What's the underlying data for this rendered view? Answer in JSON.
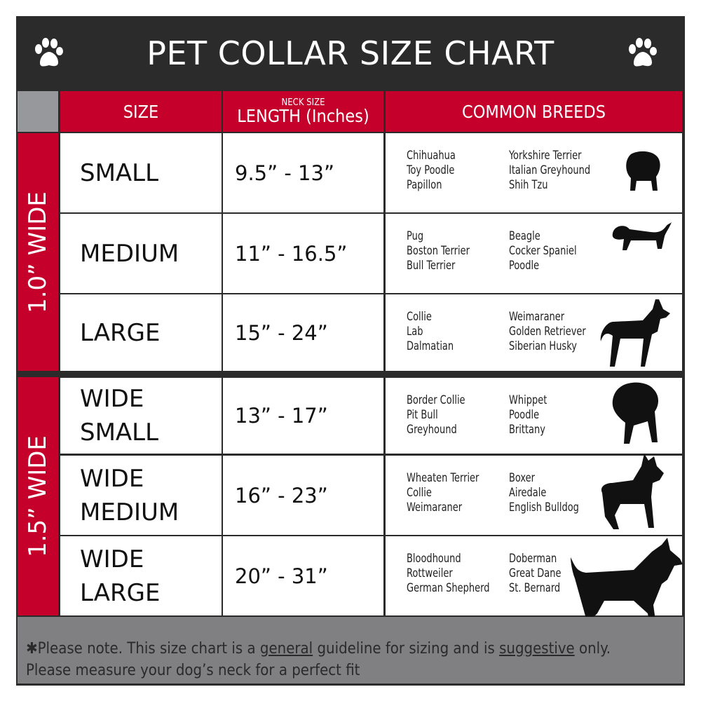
{
  "title": "PET COLLAR SIZE CHART",
  "icons": {
    "left": "paw-icon",
    "right": "paw-icon"
  },
  "colors": {
    "header_red": "#c4002b",
    "title_bg": "#2b2b2b",
    "footer_gray": "#808083"
  },
  "headers": {
    "size": "SIZE",
    "length_small": "NECK SIZE",
    "length": "LENGTH (Inches)",
    "breeds": "COMMON BREEDS"
  },
  "groups": [
    {
      "label": "1.0” WIDE"
    },
    {
      "label": "1.5” WIDE"
    }
  ],
  "rows": [
    {
      "size": "SMALL",
      "length": "9.5” - 13”",
      "breeds_a": [
        "Chihuahua",
        "Toy Poodle",
        "Papillon"
      ],
      "breeds_b": [
        "Yorkshire Terrier",
        "Italian Greyhound",
        "Shih Tzu"
      ]
    },
    {
      "size": "MEDIUM",
      "length": "11” - 16.5”",
      "breeds_a": [
        "Pug",
        "Boston Terrier",
        "Bull Terrier"
      ],
      "breeds_b": [
        "Beagle",
        "Cocker Spaniel",
        "Poodle"
      ]
    },
    {
      "size": "LARGE",
      "length": "15” - 24”",
      "breeds_a": [
        "Collie",
        "Lab",
        "Dalmatian"
      ],
      "breeds_b": [
        "Weimaraner",
        "Golden Retriever",
        "Siberian Husky"
      ]
    },
    {
      "size": "WIDE SMALL",
      "length": "13” - 17”",
      "breeds_a": [
        "Border Collie",
        "Pit Bull",
        "Greyhound"
      ],
      "breeds_b": [
        "Whippet",
        "Poodle",
        "Brittany"
      ]
    },
    {
      "size": "WIDE MEDIUM",
      "length": "16” - 23”",
      "breeds_a": [
        "Wheaten Terrier",
        "Collie",
        "Weimaraner"
      ],
      "breeds_b": [
        "Boxer",
        "Airedale",
        "English Bulldog"
      ]
    },
    {
      "size": "WIDE LARGE",
      "length": "20” - 31”",
      "breeds_a": [
        "Bloodhound",
        "Rottweiler",
        "German Shepherd"
      ],
      "breeds_b": [
        "Doberman",
        "Great Dane",
        "St. Bernard"
      ]
    }
  ],
  "footer": {
    "prefix": "✱Please note. This size chart is a",
    "general": "general",
    "middle": "guideline for sizing and is",
    "suggestive": "suggestive",
    "suffix": "only.",
    "line2": "Please measure your dog’s neck for a perfect fit"
  }
}
